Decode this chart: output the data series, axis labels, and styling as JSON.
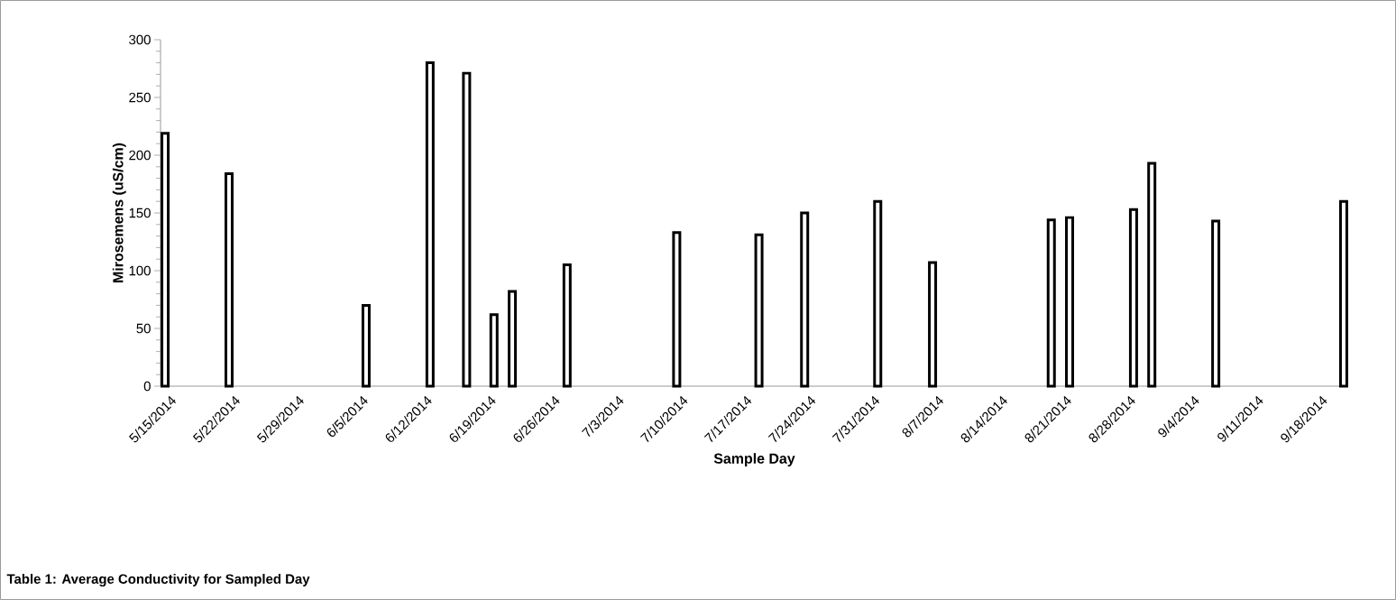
{
  "chart_data": {
    "type": "bar",
    "xlabel": "Sample Day",
    "ylabel": "Mirosemens (uS/cm)",
    "annotations": [
      "Table 1: Average Conductivity for Sampled Day"
    ],
    "x": [
      "2014-05-15",
      "2014-05-22",
      "2014-06-06",
      "2014-06-13",
      "2014-06-17",
      "2014-06-20",
      "2014-06-22",
      "2014-06-28",
      "2014-07-10",
      "2014-07-19",
      "2014-07-24",
      "2014-08-01",
      "2014-08-07",
      "2014-08-20",
      "2014-08-22",
      "2014-08-29",
      "2014-08-31",
      "2014-09-07",
      "2014-09-21"
    ],
    "values": [
      219,
      184,
      70,
      280,
      271,
      62,
      82,
      105,
      133,
      131,
      150,
      160,
      107,
      144,
      146,
      153,
      193,
      143,
      160
    ],
    "color": "#ffffff",
    "xlim": [
      "2014-05-14T12:00",
      "2014-09-21T12:00"
    ],
    "xticks": [
      {
        "value": "2014-05-15",
        "label": "5/15/2014"
      },
      {
        "value": "2014-05-22",
        "label": "5/22/2014"
      },
      {
        "value": "2014-05-29",
        "label": "5/29/2014"
      },
      {
        "value": "2014-06-05",
        "label": "6/5/2014"
      },
      {
        "value": "2014-06-12",
        "label": "6/12/2014"
      },
      {
        "value": "2014-06-19",
        "label": "6/19/2014"
      },
      {
        "value": "2014-06-26",
        "label": "6/26/2014"
      },
      {
        "value": "2014-07-03",
        "label": "7/3/2014"
      },
      {
        "value": "2014-07-10",
        "label": "7/10/2014"
      },
      {
        "value": "2014-07-17",
        "label": "7/17/2014"
      },
      {
        "value": "2014-07-24",
        "label": "7/24/2014"
      },
      {
        "value": "2014-07-31",
        "label": "7/31/2014"
      },
      {
        "value": "2014-08-07",
        "label": "8/7/2014"
      },
      {
        "value": "2014-08-14",
        "label": "8/14/2014"
      },
      {
        "value": "2014-08-21",
        "label": "8/21/2014"
      },
      {
        "value": "2014-08-28",
        "label": "8/28/2014"
      },
      {
        "value": "2014-09-04",
        "label": "9/4/2014"
      },
      {
        "value": "2014-09-11",
        "label": "9/11/2014"
      },
      {
        "value": "2014-09-18",
        "label": "9/18/2014"
      }
    ],
    "ylim": [
      0,
      300
    ],
    "yticks": [
      0,
      50,
      100,
      150,
      200,
      250,
      300
    ]
  }
}
